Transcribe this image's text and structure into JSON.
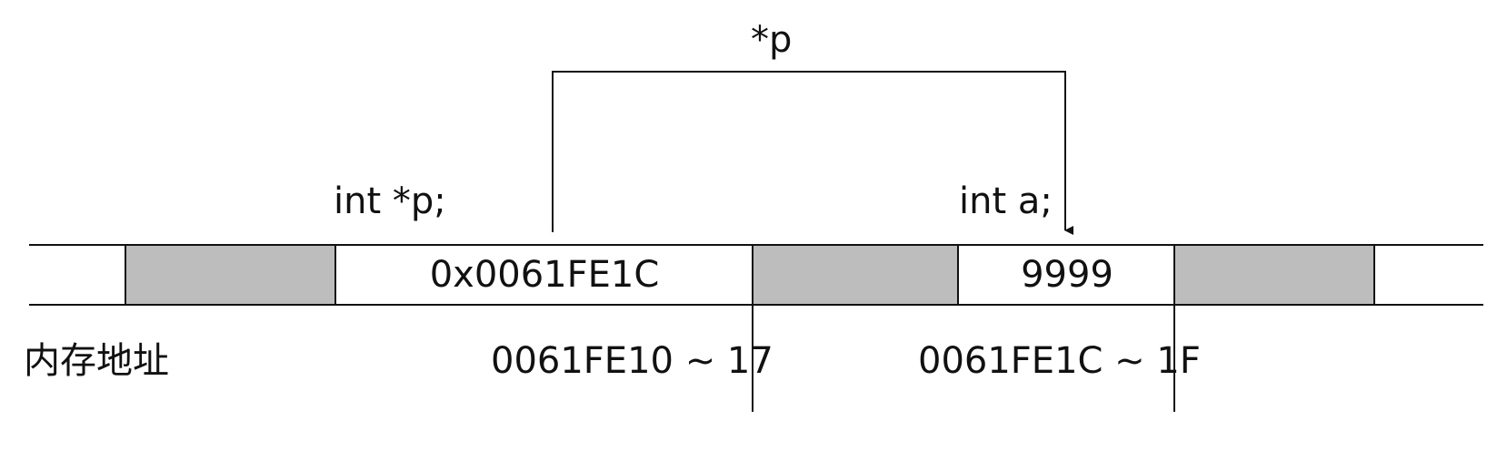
{
  "diagram": {
    "pointer_label": "*p",
    "declarations": {
      "pointer_var": "int *p;",
      "target_var": "int a;"
    },
    "cells": [
      {
        "role": "filler",
        "shaded": true,
        "value": ""
      },
      {
        "role": "pointer-p",
        "shaded": false,
        "value": "0x0061FE1C"
      },
      {
        "role": "filler",
        "shaded": true,
        "value": ""
      },
      {
        "role": "variable-a",
        "shaded": false,
        "value": "9999"
      },
      {
        "role": "filler",
        "shaded": true,
        "value": ""
      }
    ],
    "address_row": {
      "title": "内存地址",
      "pointer_range": "0061FE10 ~ 17",
      "target_range": "0061FE1C ~ 1F"
    },
    "colors": {
      "shaded_cell": "#bdbdbd",
      "line": "#111111",
      "background": "#ffffff"
    }
  }
}
